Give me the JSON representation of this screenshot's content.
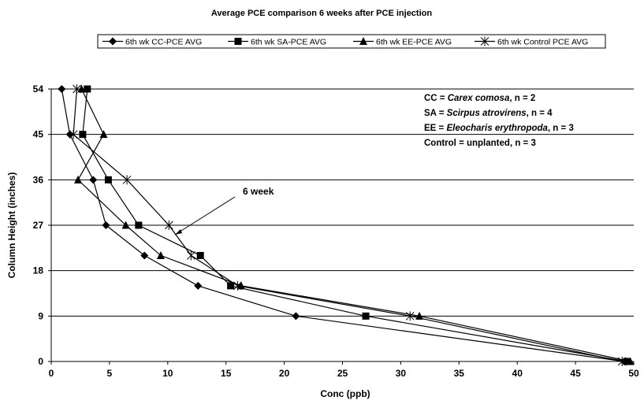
{
  "chart_data": {
    "type": "line",
    "title": "Average PCE comparison  6 weeks after PCE injection",
    "xlabel": "Conc (ppb)",
    "ylabel": "Column Height (inches)",
    "xlim": [
      0,
      50
    ],
    "ylim": [
      0,
      54
    ],
    "xticks": [
      "0",
      "5",
      "10",
      "15",
      "20",
      "25",
      "30",
      "35",
      "40",
      "45",
      "50"
    ],
    "yticks": [
      "0",
      "9",
      "18",
      "27",
      "36",
      "45",
      "54"
    ],
    "grid": "horizontal",
    "legend_position": "top",
    "series": [
      {
        "name": "6th wk CC-PCE AVG",
        "marker": "diamond",
        "points": [
          [
            49.2,
            0
          ],
          [
            21.0,
            9
          ],
          [
            12.6,
            15
          ],
          [
            8.0,
            21
          ],
          [
            4.7,
            27
          ],
          [
            3.6,
            36
          ],
          [
            1.6,
            45
          ],
          [
            0.9,
            54
          ]
        ]
      },
      {
        "name": "6th wk SA-PCE AVG",
        "marker": "square",
        "points": [
          [
            49.4,
            0
          ],
          [
            27.0,
            9
          ],
          [
            15.4,
            15
          ],
          [
            12.8,
            21
          ],
          [
            7.5,
            27
          ],
          [
            4.9,
            36
          ],
          [
            2.7,
            45
          ],
          [
            3.1,
            54
          ]
        ]
      },
      {
        "name": "6th wk EE-PCE AVG",
        "marker": "triangle",
        "points": [
          [
            49.7,
            0
          ],
          [
            31.6,
            9
          ],
          [
            16.3,
            15
          ],
          [
            9.4,
            21
          ],
          [
            6.4,
            27
          ],
          [
            2.3,
            36
          ],
          [
            4.5,
            45
          ],
          [
            2.6,
            54
          ]
        ]
      },
      {
        "name": "6th wk Control PCE AVG",
        "marker": "star",
        "points": [
          [
            49.0,
            0
          ],
          [
            30.8,
            9
          ],
          [
            16.0,
            15
          ],
          [
            12.0,
            21
          ],
          [
            10.1,
            27
          ],
          [
            6.5,
            36
          ],
          [
            1.9,
            45
          ],
          [
            2.2,
            54
          ]
        ]
      }
    ],
    "annotations": {
      "lines": [
        {
          "text": "CC = ",
          "italic": "Carex comosa",
          "tail": ", n =  2"
        },
        {
          "text": "SA = ",
          "italic": "Scirpus atrovirens",
          "tail": ", n = 4"
        },
        {
          "text": "EE = ",
          "italic": "Eleocharis erythropoda",
          "tail": ", n = 3"
        },
        {
          "text": "Control =  unplanted",
          "italic": "",
          "tail": ", n = 3"
        }
      ],
      "callout": {
        "text": "6 week",
        "target": [
          10.6,
          25
        ]
      }
    }
  }
}
